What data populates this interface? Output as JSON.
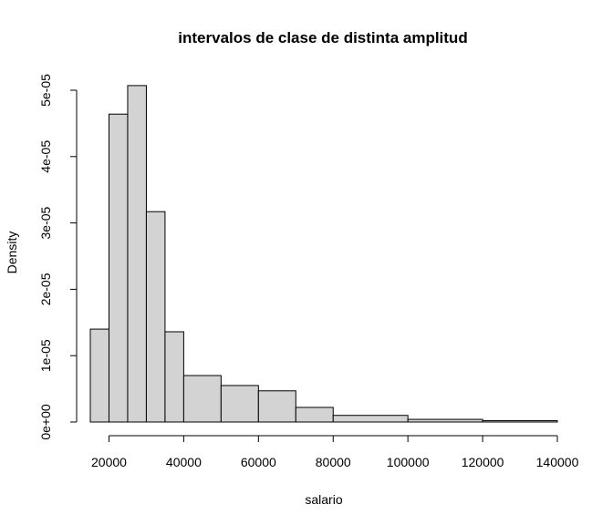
{
  "chart_data": {
    "type": "bar",
    "title": "intervalos de clase de distinta amplitud",
    "xlabel": "salario",
    "ylabel": "Density",
    "xlim": [
      15000,
      140000
    ],
    "ylim": [
      0,
      5e-05
    ],
    "x_ticks": [
      20000,
      40000,
      60000,
      80000,
      100000,
      120000,
      140000
    ],
    "x_tick_labels": [
      "20000",
      "40000",
      "60000",
      "80000",
      "100000",
      "120000",
      "140000"
    ],
    "y_ticks": [
      0,
      1e-05,
      2e-05,
      3e-05,
      4e-05,
      5e-05
    ],
    "y_tick_labels": [
      "0e+00",
      "1e-05",
      "2e-05",
      "3e-05",
      "4e-05",
      "5e-05"
    ],
    "bins": [
      {
        "from": 15000,
        "to": 20000,
        "density": 1.4e-05
      },
      {
        "from": 20000,
        "to": 25000,
        "density": 4.64e-05
      },
      {
        "from": 25000,
        "to": 30000,
        "density": 5.07e-05
      },
      {
        "from": 30000,
        "to": 35000,
        "density": 3.17e-05
      },
      {
        "from": 35000,
        "to": 40000,
        "density": 1.36e-05
      },
      {
        "from": 40000,
        "to": 50000,
        "density": 7e-06
      },
      {
        "from": 50000,
        "to": 60000,
        "density": 5.5e-06
      },
      {
        "from": 60000,
        "to": 70000,
        "density": 4.7e-06
      },
      {
        "from": 70000,
        "to": 80000,
        "density": 2.2e-06
      },
      {
        "from": 80000,
        "to": 100000,
        "density": 1e-06
      },
      {
        "from": 100000,
        "to": 120000,
        "density": 4e-07
      },
      {
        "from": 120000,
        "to": 140000,
        "density": 2e-07
      }
    ],
    "colors": {
      "bar_fill": "#d3d3d3",
      "bar_stroke": "#000000"
    },
    "grid": false
  }
}
